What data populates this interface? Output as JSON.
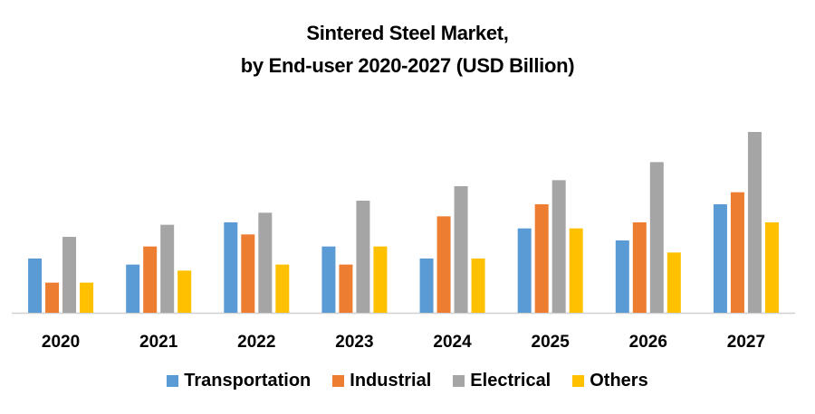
{
  "chart_data": {
    "type": "bar",
    "title": "Sintered Steel Market,",
    "subtitle": "by End-user 2020-2027 (USD Billion)",
    "xlabel": "",
    "ylabel": "",
    "grid": false,
    "legend_position": "bottom",
    "ylim": [
      0,
      15
    ],
    "categories": [
      "2020",
      "2021",
      "2022",
      "2023",
      "2024",
      "2025",
      "2026",
      "2027"
    ],
    "series": [
      {
        "name": "Transportation",
        "color": "#5B9BD5",
        "values": [
          4.5,
          4.0,
          7.5,
          5.5,
          4.5,
          7.0,
          6.0,
          9.0
        ]
      },
      {
        "name": "Industrial",
        "color": "#ED7D31",
        "values": [
          2.5,
          5.5,
          6.5,
          4.0,
          8.0,
          9.0,
          7.5,
          10.0
        ]
      },
      {
        "name": "Electrical",
        "color": "#A5A5A5",
        "values": [
          6.3,
          7.3,
          8.3,
          9.3,
          10.5,
          11.0,
          12.5,
          15.0
        ]
      },
      {
        "name": "Others",
        "color": "#FFC000",
        "values": [
          2.5,
          3.5,
          4.0,
          5.5,
          4.5,
          7.0,
          5.0,
          7.5
        ]
      }
    ]
  }
}
